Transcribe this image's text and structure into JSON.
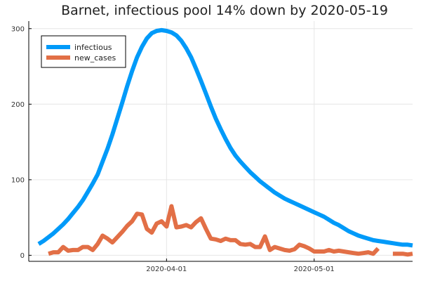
{
  "chart_data": {
    "type": "line",
    "title": "Barnet, infectious pool 14% down by 2020-05-19",
    "xlabel": "",
    "ylabel": "",
    "x_start": "2020-03-06",
    "x_end": "2020-05-19",
    "xlim": [
      "2020-03-04",
      "2020-05-21"
    ],
    "ylim": [
      -8,
      310
    ],
    "x_ticks": [
      {
        "date": "2020-04-01",
        "label": "2020-04-01"
      },
      {
        "date": "2020-05-01",
        "label": "2020-05-01"
      }
    ],
    "y_ticks": [
      0,
      100,
      200,
      300
    ],
    "grid": true,
    "legend_position": "top-left",
    "series": [
      {
        "name": "infectious",
        "color": "#009af9",
        "values": [
          15,
          19,
          24,
          29,
          35,
          41,
          48,
          56,
          64,
          73,
          84,
          95,
          107,
          124,
          141,
          160,
          181,
          202,
          224,
          244,
          262,
          276,
          287,
          294,
          297,
          298,
          297,
          295,
          291,
          284,
          274,
          262,
          247,
          231,
          214,
          197,
          181,
          167,
          154,
          142,
          132,
          124,
          117,
          110,
          104,
          98,
          93,
          88,
          83,
          79,
          75,
          72,
          69,
          66,
          63,
          60,
          57,
          54,
          51,
          47,
          43,
          40,
          36,
          32,
          29,
          26,
          24,
          22,
          20,
          19,
          18,
          17,
          16,
          15,
          14,
          14,
          13
        ]
      },
      {
        "name": "new_cases",
        "color": "#e26f46",
        "values": [
          null,
          null,
          2,
          4,
          4,
          11,
          6,
          7,
          7,
          11,
          11,
          7,
          15,
          26,
          22,
          17,
          24,
          31,
          39,
          45,
          55,
          54,
          35,
          30,
          42,
          45,
          38,
          65,
          37,
          38,
          40,
          37,
          44,
          49,
          35,
          22,
          21,
          19,
          22,
          20,
          20,
          15,
          14,
          15,
          11,
          11,
          25,
          7,
          11,
          9,
          7,
          6,
          8,
          14,
          12,
          9,
          5,
          5,
          5,
          7,
          5,
          6,
          5,
          4,
          3,
          2,
          3,
          4,
          2,
          9,
          null,
          null,
          2,
          2,
          2,
          1,
          2
        ]
      }
    ]
  }
}
